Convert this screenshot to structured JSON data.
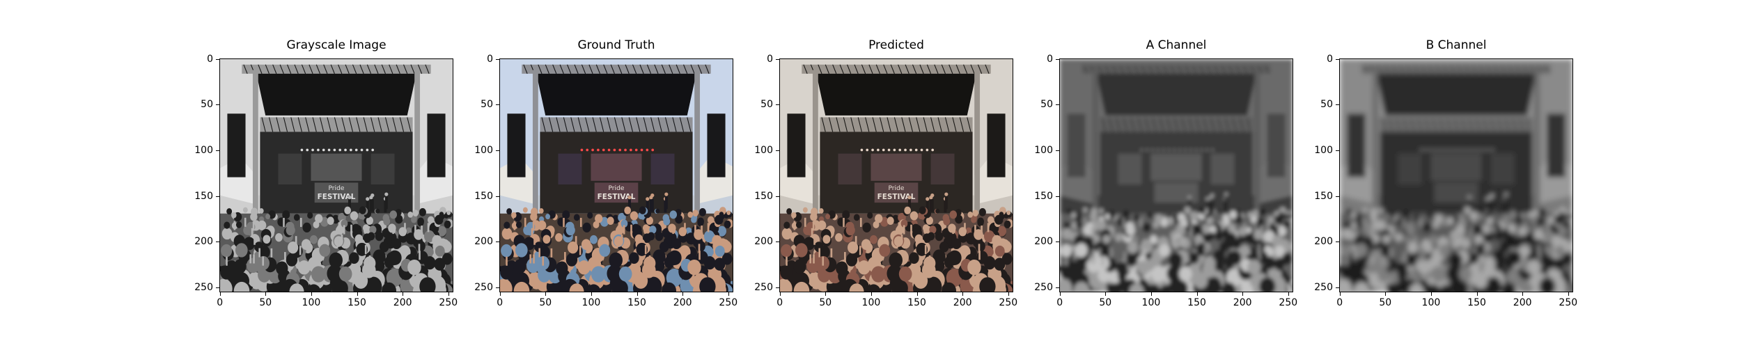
{
  "chart_data": {
    "type": "image",
    "image_size": [
      256,
      256
    ],
    "panels": [
      {
        "title": "Grayscale Image",
        "colormap": "gray",
        "x_ticks": [
          "0",
          "50",
          "100",
          "150",
          "200",
          "250"
        ],
        "y_ticks": [
          "0",
          "50",
          "100",
          "150",
          "200",
          "250"
        ],
        "xlim": [
          0,
          256
        ],
        "ylim": [
          256,
          0
        ],
        "banner_text": [
          "Pride",
          "FESTIVAL"
        ]
      },
      {
        "title": "Ground Truth",
        "colormap": "rgb",
        "x_ticks": [
          "0",
          "50",
          "100",
          "150",
          "200",
          "250"
        ],
        "y_ticks": [
          "0",
          "50",
          "100",
          "150",
          "200",
          "250"
        ],
        "xlim": [
          0,
          256
        ],
        "ylim": [
          256,
          0
        ],
        "banner_text": [
          "Pride",
          "FESTIVAL"
        ]
      },
      {
        "title": "Predicted",
        "colormap": "rgb",
        "x_ticks": [
          "0",
          "50",
          "100",
          "150",
          "200",
          "250"
        ],
        "y_ticks": [
          "0",
          "50",
          "100",
          "150",
          "200",
          "250"
        ],
        "xlim": [
          0,
          256
        ],
        "ylim": [
          256,
          0
        ],
        "banner_text": [
          "Pride",
          "FESTIVAL"
        ]
      },
      {
        "title": "A Channel",
        "colormap": "gray",
        "x_ticks": [
          "0",
          "50",
          "100",
          "150",
          "200",
          "250"
        ],
        "y_ticks": [
          "0",
          "50",
          "100",
          "150",
          "200",
          "250"
        ],
        "xlim": [
          0,
          256
        ],
        "ylim": [
          256,
          0
        ],
        "banner_text": [
          "",
          ""
        ]
      },
      {
        "title": "B Channel",
        "colormap": "gray",
        "x_ticks": [
          "0",
          "50",
          "100",
          "150",
          "200",
          "250"
        ],
        "y_ticks": [
          "0",
          "50",
          "100",
          "150",
          "200",
          "250"
        ],
        "xlim": [
          0,
          256
        ],
        "ylim": [
          256,
          0
        ],
        "banner_text": [
          "",
          ""
        ]
      }
    ]
  },
  "palettes": {
    "gray": {
      "sky": "#d9d9d9",
      "roof": "#141414",
      "truss": "#9a9a9a",
      "speaker": "#1c1c1c",
      "tent": "#e8e8e8",
      "stage": "#2a2a2a",
      "screen": "#3c3c3c",
      "banner": "#555555",
      "banner_text": "#e0e0e0",
      "crowd": "#5a5a5a",
      "crowd_a": "#b5b5b5",
      "crowd_b": "#1e1e1e",
      "crowd_c": "#7a7a7a",
      "lights": "#dddddd",
      "bg": "#cfcfcf"
    },
    "rgb": {
      "sky": "#c9d6ea",
      "roof": "#111114",
      "truss": "#8f9095",
      "speaker": "#18181a",
      "tent": "#e9e7e2",
      "stage": "#2a2624",
      "screen": "#3a3140",
      "banner": "#5b4148",
      "banner_text": "#e8e2da",
      "crowd": "#4e4038",
      "crowd_a": "#c99b7f",
      "crowd_b": "#1b1a22",
      "crowd_c": "#6f8fb0",
      "lights": "#ff4a4a",
      "bg": "#c6cfdb"
    },
    "pred": {
      "sky": "#d8d3cc",
      "roof": "#141311",
      "truss": "#9a948d",
      "speaker": "#1c1a18",
      "tent": "#e7e2da",
      "stage": "#2c2723",
      "screen": "#443738",
      "banner": "#5a4546",
      "banner_text": "#e6dcd2",
      "crowd": "#5b4740",
      "crowd_a": "#c8a188",
      "crowd_b": "#221d1c",
      "crowd_c": "#8a5a4c",
      "lights": "#e8d6c8",
      "bg": "#cbc5bd"
    },
    "achan": {
      "sky": "#6a6a6a",
      "roof": "#303030",
      "truss": "#5c5c5c",
      "speaker": "#4a4a4a",
      "tent": "#6e6e6e",
      "stage": "#3a3a3a",
      "screen": "#555555",
      "banner": "#5a5a5a",
      "banner_text": "#7a7a7a",
      "crowd": "#5e5e5e",
      "crowd_a": "#9c9c9c",
      "crowd_b": "#202020",
      "crowd_c": "#c4c4c4",
      "lights": "#7a7a7a",
      "bg": "#3c3c3c"
    },
    "bchan": {
      "sky": "#8a8a8a",
      "roof": "#2a2a2a",
      "truss": "#6a6a6a",
      "speaker": "#333333",
      "tent": "#9a9a9a",
      "stage": "#2e2e2e",
      "screen": "#404040",
      "banner": "#4a4a4a",
      "banner_text": "#6a6a6a",
      "crowd": "#5a5a5a",
      "crowd_a": "#a8a8a8",
      "crowd_b": "#1e1e1e",
      "crowd_c": "#7e7e7e",
      "lights": "#8a8a8a",
      "bg": "#7a7a7a"
    }
  }
}
